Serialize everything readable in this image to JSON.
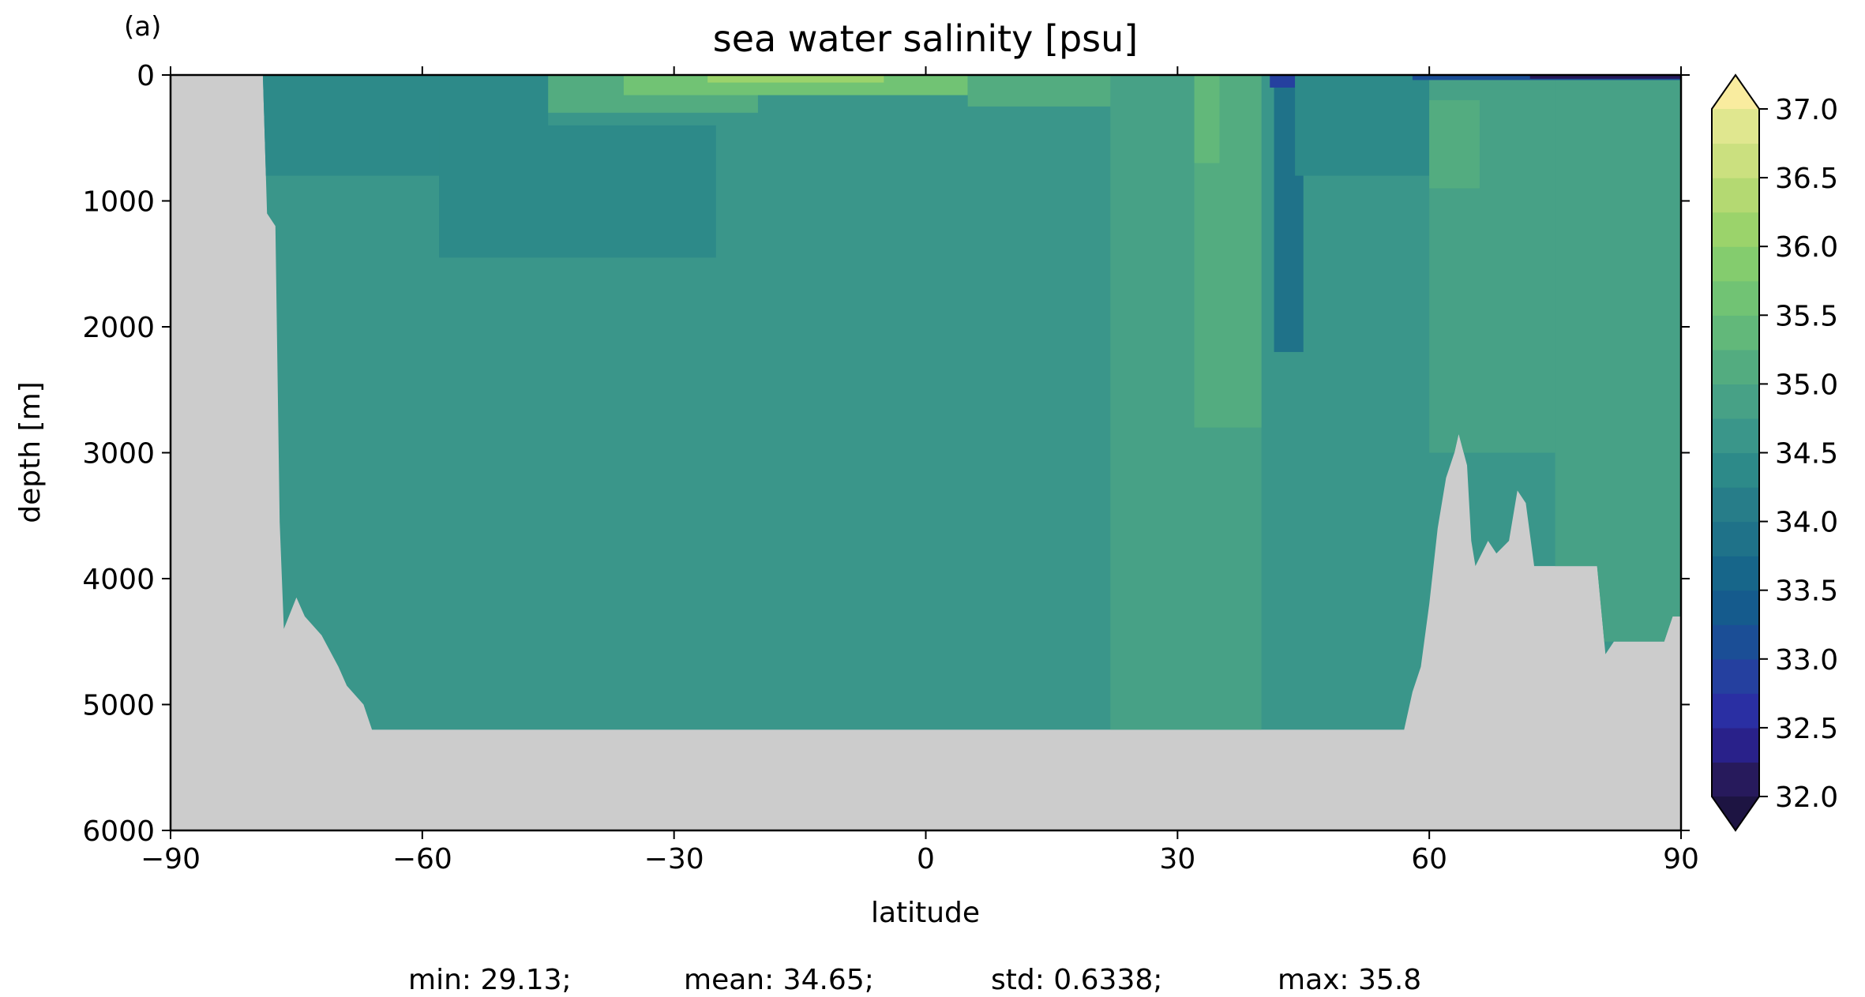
{
  "chart_data": {
    "type": "heatmap",
    "panel_label": "(a)",
    "title": "sea water salinity [psu]",
    "xlabel": "latitude",
    "ylabel": "depth [m]",
    "xlim": [
      -90,
      90
    ],
    "ylim": [
      6000,
      0
    ],
    "xticks": [
      -90,
      -60,
      -30,
      0,
      30,
      60,
      90
    ],
    "xtick_labels": [
      "−90",
      "−60",
      "−30",
      "0",
      "30",
      "60",
      "90"
    ],
    "yticks": [
      0,
      1000,
      2000,
      3000,
      4000,
      5000,
      6000
    ],
    "ytick_labels": [
      "0",
      "1000",
      "2000",
      "3000",
      "4000",
      "5000",
      "6000"
    ],
    "colorbar": {
      "min": 32.0,
      "max": 37.0,
      "step": 0.25,
      "extend": "both",
      "tick_values": [
        32.0,
        32.5,
        33.0,
        33.5,
        34.0,
        34.5,
        35.0,
        35.5,
        36.0,
        36.5,
        37.0
      ],
      "tick_labels": [
        "32.0",
        "32.5",
        "33.0",
        "33.5",
        "34.0",
        "34.5",
        "35.0",
        "35.5",
        "36.0",
        "36.5",
        "37.0"
      ],
      "colors": [
        "#271a5c",
        "#29218a",
        "#2a2fa3",
        "#25409f",
        "#1b4e96",
        "#155b8d",
        "#17668a",
        "#1f7289",
        "#277d89",
        "#2d8a89",
        "#3a968a",
        "#47a186",
        "#53ac80",
        "#62b87a",
        "#71c374",
        "#84cc6e",
        "#9bd36b",
        "#b4d972",
        "#cbe07f",
        "#e0e78f",
        "#f2ec9e"
      ],
      "under_color": "#1d1442",
      "over_color": "#f9ec9f"
    },
    "land_color": "#cccccc",
    "stats": {
      "min": "min: 29.13;",
      "mean": "mean: 34.65;",
      "std": "std: 0.6338;",
      "max": "max: 35.8"
    },
    "bathymetry_depth_m": [
      [
        -90,
        0
      ],
      [
        -79,
        0
      ],
      [
        -78.5,
        1100
      ],
      [
        -77.5,
        1200
      ],
      [
        -77,
        3550
      ],
      [
        -76.5,
        4400
      ],
      [
        -75,
        4150
      ],
      [
        -74,
        4300
      ],
      [
        -72,
        4450
      ],
      [
        -70,
        4700
      ],
      [
        -69,
        4850
      ],
      [
        -67,
        5000
      ],
      [
        -66,
        5200
      ],
      [
        57,
        5200
      ],
      [
        58,
        4900
      ],
      [
        59,
        4700
      ],
      [
        60,
        4200
      ],
      [
        61,
        3600
      ],
      [
        62,
        3200
      ],
      [
        63,
        3000
      ],
      [
        63.5,
        2850
      ],
      [
        64.5,
        3100
      ],
      [
        65,
        3700
      ],
      [
        65.5,
        3900
      ],
      [
        67,
        3700
      ],
      [
        68,
        3800
      ],
      [
        69.5,
        3700
      ],
      [
        70.5,
        3300
      ],
      [
        71.5,
        3400
      ],
      [
        72.5,
        3900
      ],
      [
        73.5,
        3900
      ],
      [
        80,
        3900
      ],
      [
        81,
        4600
      ],
      [
        82,
        4500
      ],
      [
        87,
        4500
      ],
      [
        88,
        4500
      ],
      [
        89,
        4300
      ],
      [
        90,
        4300
      ]
    ],
    "salinity_regions_psu": [
      {
        "lat": [
          -79,
          90
        ],
        "depth": [
          0,
          6000
        ],
        "value": 34.5
      },
      {
        "lat": [
          -79,
          -45
        ],
        "depth": [
          0,
          800
        ],
        "value": 34.25
      },
      {
        "lat": [
          -58,
          -25
        ],
        "depth": [
          400,
          1450
        ],
        "value": 34.25
      },
      {
        "lat": [
          -45,
          -20
        ],
        "depth": [
          0,
          300
        ],
        "value": 35.0
      },
      {
        "lat": [
          -36,
          5
        ],
        "depth": [
          0,
          160
        ],
        "value": 35.5
      },
      {
        "lat": [
          -26,
          -5
        ],
        "depth": [
          0,
          60
        ],
        "value": 36.0
      },
      {
        "lat": [
          5,
          25
        ],
        "depth": [
          0,
          250
        ],
        "value": 35.0
      },
      {
        "lat": [
          22,
          40
        ],
        "depth": [
          0,
          5200
        ],
        "value": 34.75
      },
      {
        "lat": [
          32,
          40
        ],
        "depth": [
          0,
          2800
        ],
        "value": 35.0
      },
      {
        "lat": [
          32,
          35
        ],
        "depth": [
          0,
          700
        ],
        "value": 35.25
      },
      {
        "lat": [
          41.5,
          45
        ],
        "depth": [
          0,
          2200
        ],
        "value": 33.75
      },
      {
        "lat": [
          41,
          44
        ],
        "depth": [
          0,
          100
        ],
        "value": 32.75
      },
      {
        "lat": [
          44,
          60
        ],
        "depth": [
          0,
          800
        ],
        "value": 34.25
      },
      {
        "lat": [
          60,
          75
        ],
        "depth": [
          0,
          3000
        ],
        "value": 34.75
      },
      {
        "lat": [
          60,
          66
        ],
        "depth": [
          200,
          900
        ],
        "value": 35.0
      },
      {
        "lat": [
          75,
          90
        ],
        "depth": [
          0,
          4500
        ],
        "value": 34.75
      },
      {
        "lat": [
          58,
          90
        ],
        "depth": [
          0,
          40
        ],
        "value": 33.0
      },
      {
        "lat": [
          72,
          90
        ],
        "depth": [
          0,
          30
        ],
        "value": 32.0
      }
    ]
  }
}
